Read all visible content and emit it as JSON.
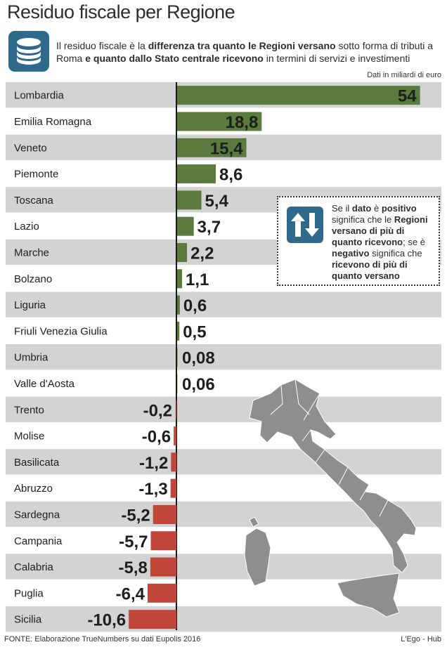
{
  "title": "Residuo fiscale per Regione",
  "intro": {
    "t1": "Il residuo fiscale è la ",
    "b1": "differenza tra quanto le Regioni versano",
    "t2": " sotto forma di tributi a Roma ",
    "b2": "e quanto dallo Stato centrale ricevono",
    "t3": " in termini di servizi e investimenti"
  },
  "unit_note": "Dati in miliardi di euro",
  "legend": {
    "t1": "Se il ",
    "b1": "dato",
    "t2": " è ",
    "b2": "positivo",
    "t3": " significa che le ",
    "b3": "Regioni versano di più di quanto ricevono",
    "t4": "; se è ",
    "b4": "negativo",
    "t5": " significa che ",
    "b5": "ricevono di più di quanto versano"
  },
  "source": "FONTE: Elaborazione TrueNumbers su dati Eupolis 2016",
  "credit": "L'Ego - Hub",
  "colors": {
    "positive": "#5a7a3e",
    "negative": "#c0463a",
    "row_shade": "#d3d3d3",
    "accent": "#2f6a8c",
    "map": "#8e8e8e"
  },
  "icons": {
    "intro": "coins-stack-icon",
    "legend": "up-down-arrows-icon",
    "map": "italy-map-icon"
  },
  "chart_data": {
    "type": "bar",
    "orientation": "horizontal",
    "categories": [
      "Lombardia",
      "Emilia Romagna",
      "Veneto",
      "Piemonte",
      "Toscana",
      "Lazio",
      "Marche",
      "Bolzano",
      "Liguria",
      "Friuli Venezia Giulia",
      "Umbria",
      "Valle d'Aosta",
      "Trento",
      "Molise",
      "Basilicata",
      "Abruzzo",
      "Sardegna",
      "Campania",
      "Calabria",
      "Puglia",
      "Sicilia"
    ],
    "values": [
      54,
      18.8,
      15.4,
      8.6,
      5.4,
      3.7,
      2.2,
      1.1,
      0.6,
      0.5,
      0.08,
      0.06,
      -0.2,
      -0.6,
      -1.2,
      -1.3,
      -5.2,
      -5.7,
      -5.8,
      -6.4,
      -10.6
    ],
    "value_labels": [
      "54",
      "18,8",
      "15,4",
      "8,6",
      "5,4",
      "3,7",
      "2,2",
      "1,1",
      "0,6",
      "0,5",
      "0,08",
      "0,06",
      "-0,2",
      "-0,6",
      "-1,2",
      "-1,3",
      "-5,2",
      "-5,7",
      "-5,8",
      "-6,4",
      "-10,6"
    ],
    "grid": false,
    "legend": "none"
  }
}
